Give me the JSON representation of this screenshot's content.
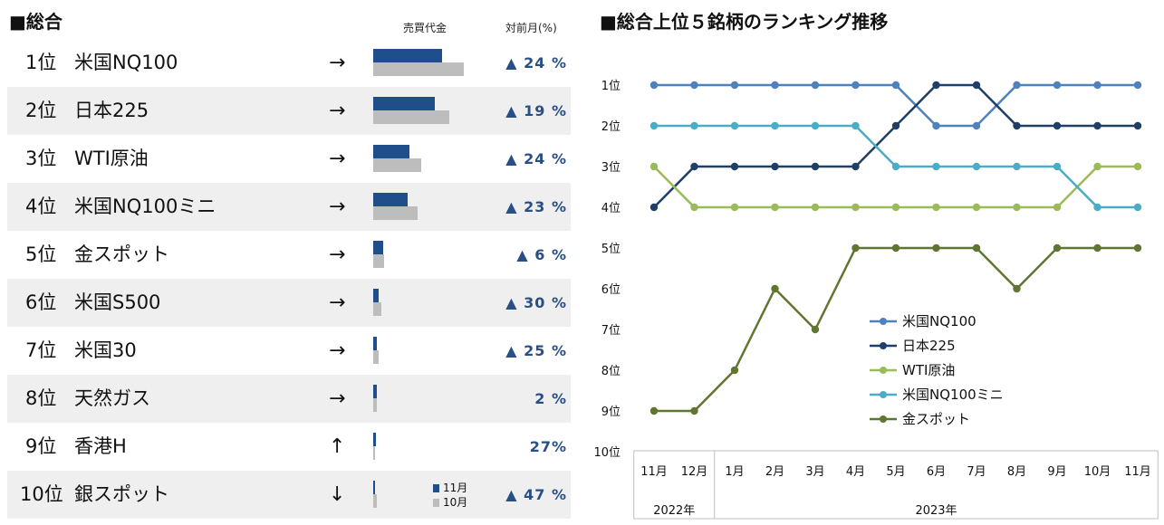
{
  "left": {
    "title": "■総合",
    "col_volume": "売買代金",
    "col_mom": "対前月(%)",
    "legend": {
      "cur": "11月",
      "prev": "10月",
      "cur_color": "#1f4e8a",
      "prev_color": "#bdbdbd"
    },
    "rows": [
      {
        "rank": "1位",
        "name": "米国NQ100",
        "arrow": "→",
        "pct": "▲ 24 %",
        "cur": 76,
        "prev": 100
      },
      {
        "rank": "2位",
        "name": "日本225",
        "arrow": "→",
        "pct": "▲ 19 %",
        "cur": 68,
        "prev": 84
      },
      {
        "rank": "3位",
        "name": "WTI原油",
        "arrow": "→",
        "pct": "▲ 24 %",
        "cur": 40,
        "prev": 53
      },
      {
        "rank": "4位",
        "name": "米国NQ100ミニ",
        "arrow": "→",
        "pct": "▲ 23 %",
        "cur": 38,
        "prev": 49
      },
      {
        "rank": "5位",
        "name": "金スポット",
        "arrow": "→",
        "pct": "▲ 6 %",
        "cur": 11,
        "prev": 12
      },
      {
        "rank": "6位",
        "name": "米国S500",
        "arrow": "→",
        "pct": "▲ 30 %",
        "cur": 6,
        "prev": 9
      },
      {
        "rank": "7位",
        "name": "米国30",
        "arrow": "→",
        "pct": "▲ 25 %",
        "cur": 4,
        "prev": 6
      },
      {
        "rank": "8位",
        "name": "天然ガス",
        "arrow": "→",
        "pct": "2 %",
        "cur": 4,
        "prev": 4
      },
      {
        "rank": "9位",
        "name": "香港H",
        "arrow": "↑",
        "pct": "27%",
        "cur": 3,
        "prev": 2
      },
      {
        "rank": "10位",
        "name": "銀スポット",
        "arrow": "↓",
        "pct": "▲ 47 %",
        "cur": 2,
        "prev": 4
      }
    ]
  },
  "chart_data": {
    "type": "line",
    "title": "■総合上位５銘柄のランキング推移",
    "categories": [
      "11月",
      "12月",
      "1月",
      "2月",
      "3月",
      "4月",
      "5月",
      "6月",
      "7月",
      "8月",
      "9月",
      "10月",
      "11月"
    ],
    "year_groups": [
      {
        "label": "2022年",
        "span": 2
      },
      {
        "label": "2023年",
        "span": 11
      }
    ],
    "y_ticks": [
      "1位",
      "2位",
      "3位",
      "4位",
      "5位",
      "6位",
      "7位",
      "8位",
      "9位",
      "10位"
    ],
    "ylim": [
      1,
      10
    ],
    "series": [
      {
        "name": "米国NQ100",
        "color": "#4f81bd",
        "values": [
          1,
          1,
          1,
          1,
          1,
          1,
          1,
          2,
          2,
          1,
          1,
          1,
          1
        ]
      },
      {
        "name": "日本225",
        "color": "#1f3f66",
        "values": [
          4,
          3,
          3,
          3,
          3,
          3,
          2,
          1,
          1,
          2,
          2,
          2,
          2
        ]
      },
      {
        "name": "WTI原油",
        "color": "#9bbb59",
        "values": [
          3,
          4,
          4,
          4,
          4,
          4,
          4,
          4,
          4,
          4,
          4,
          3,
          3
        ]
      },
      {
        "name": "米国NQ100ミニ",
        "color": "#4bacc6",
        "values": [
          2,
          2,
          2,
          2,
          2,
          2,
          3,
          3,
          3,
          3,
          3,
          4,
          4
        ]
      },
      {
        "name": "金スポット",
        "color": "#5f7530",
        "values": [
          9,
          9,
          8,
          6,
          7,
          5,
          5,
          5,
          5,
          6,
          5,
          5,
          5
        ]
      }
    ]
  }
}
